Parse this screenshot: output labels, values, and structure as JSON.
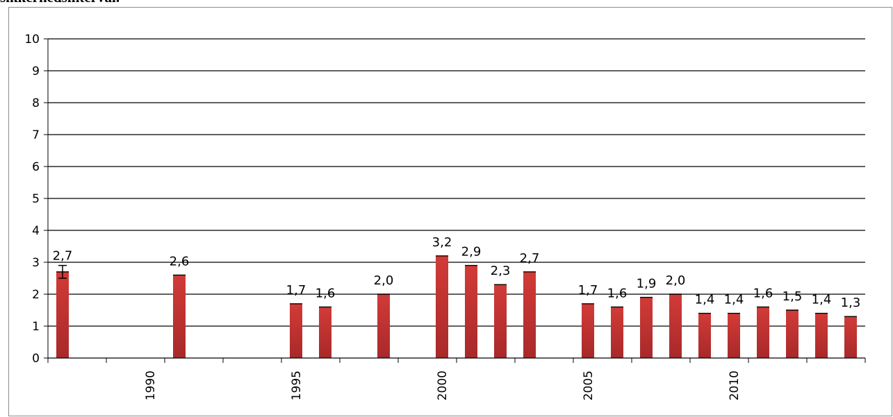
{
  "heading": "sikkerhedsinterval.",
  "chart_data": {
    "type": "bar",
    "title": "",
    "xlabel": "",
    "ylabel": "",
    "ylim": [
      0,
      10
    ],
    "yticks": [
      0,
      1,
      2,
      3,
      4,
      5,
      6,
      7,
      8,
      9,
      10
    ],
    "xlim": [
      1986.5,
      2014.5
    ],
    "xtick_labels": [
      1990,
      1995,
      2000,
      2005,
      2010
    ],
    "grid": true,
    "legend": "none",
    "bar_color": "#c0312f",
    "series": [
      {
        "values": [
          {
            "x": 1987,
            "y": 2.7,
            "label": "2,7",
            "err": 0.2
          },
          {
            "x": 1991,
            "y": 2.6,
            "label": "2,6"
          },
          {
            "x": 1995,
            "y": 1.7,
            "label": "1,7"
          },
          {
            "x": 1996,
            "y": 1.6,
            "label": "1,6"
          },
          {
            "x": 1998,
            "y": 2.0,
            "label": "2,0"
          },
          {
            "x": 2000,
            "y": 3.2,
            "label": "3,2"
          },
          {
            "x": 2001,
            "y": 2.9,
            "label": "2,9"
          },
          {
            "x": 2002,
            "y": 2.3,
            "label": "2,3"
          },
          {
            "x": 2003,
            "y": 2.7,
            "label": "2,7"
          },
          {
            "x": 2005,
            "y": 1.7,
            "label": "1,7"
          },
          {
            "x": 2006,
            "y": 1.6,
            "label": "1,6"
          },
          {
            "x": 2007,
            "y": 1.9,
            "label": "1,9"
          },
          {
            "x": 2008,
            "y": 2.0,
            "label": "2,0"
          },
          {
            "x": 2009,
            "y": 1.4,
            "label": "1,4"
          },
          {
            "x": 2010,
            "y": 1.4,
            "label": "1,4"
          },
          {
            "x": 2011,
            "y": 1.6,
            "label": "1,6"
          },
          {
            "x": 2012,
            "y": 1.5,
            "label": "1,5"
          },
          {
            "x": 2013,
            "y": 1.4,
            "label": "1,4"
          },
          {
            "x": 2014,
            "y": 1.3,
            "label": "1,3"
          }
        ]
      }
    ]
  }
}
